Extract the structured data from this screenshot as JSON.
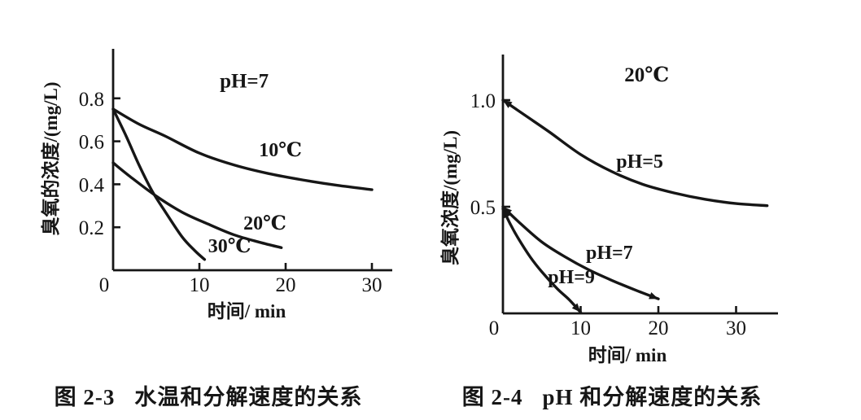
{
  "page": {
    "background": "#ffffff",
    "ink_color": "#161616"
  },
  "figures": [
    {
      "caption_number": "图 2-3",
      "caption_text": "水温和分解速度的关系"
    },
    {
      "caption_number": "图 2-4",
      "caption_text": "pH 和分解速度的关系"
    }
  ],
  "chart_data": [
    {
      "type": "line",
      "caption": "图 2-3 水温和分解速度的关系",
      "xlabel": "时间/ min",
      "ylabel": "臭氧的浓度/(mg/L)",
      "xlim": [
        0,
        32
      ],
      "ylim": [
        0,
        1.03
      ],
      "xticks": [
        0,
        10,
        20,
        30
      ],
      "yticks": [
        0.2,
        0.4,
        0.6,
        0.8
      ],
      "grid": false,
      "legend_position": "inline-labels",
      "annotations": [
        {
          "text": "pH=7",
          "x": 15.2,
          "y": 0.85,
          "role": "condition"
        }
      ],
      "series": [
        {
          "name": "10℃",
          "points": [
            [
              0,
              0.75
            ],
            [
              3,
              0.68
            ],
            [
              6,
              0.625
            ],
            [
              10,
              0.545
            ],
            [
              14,
              0.49
            ],
            [
              18,
              0.45
            ],
            [
              22,
              0.42
            ],
            [
              26,
              0.395
            ],
            [
              30,
              0.375
            ]
          ],
          "label": {
            "text": "10℃",
            "x": 19.4,
            "y": 0.53
          },
          "arrow_start": false,
          "arrow_end": false
        },
        {
          "name": "20℃",
          "points": [
            [
              0,
              0.5
            ],
            [
              2,
              0.435
            ],
            [
              5,
              0.345
            ],
            [
              8,
              0.27
            ],
            [
              11,
              0.215
            ],
            [
              14,
              0.165
            ],
            [
              17,
              0.13
            ],
            [
              19.5,
              0.105
            ]
          ],
          "label": {
            "text": "20℃",
            "x": 17.6,
            "y": 0.19
          },
          "arrow_start": false,
          "arrow_end": false
        },
        {
          "name": "30℃",
          "points": [
            [
              0,
              0.75
            ],
            [
              1.5,
              0.625
            ],
            [
              3,
              0.49
            ],
            [
              4.5,
              0.37
            ],
            [
              6,
              0.275
            ],
            [
              8,
              0.155
            ],
            [
              9.5,
              0.09
            ],
            [
              10.6,
              0.05
            ]
          ],
          "label": {
            "text": "30℃",
            "x": 13.5,
            "y": 0.084
          },
          "arrow_start": false,
          "arrow_end": false
        }
      ]
    },
    {
      "type": "line",
      "caption": "图 2-4 pH 和分解速度的关系",
      "xlabel": "时间/ min",
      "ylabel": "臭氧浓度/(mg/L)",
      "xlim": [
        0,
        35
      ],
      "ylim": [
        0,
        1.2
      ],
      "xticks": [
        0,
        10,
        20,
        30
      ],
      "yticks": [
        0.5,
        1.0
      ],
      "grid": false,
      "legend_position": "inline-labels",
      "annotations": [
        {
          "text": "20℃",
          "x": 18.5,
          "y": 1.088,
          "role": "condition"
        }
      ],
      "series": [
        {
          "name": "pH=5",
          "points": [
            [
              0,
              1.0
            ],
            [
              3,
              0.925
            ],
            [
              6,
              0.85
            ],
            [
              10,
              0.745
            ],
            [
              14,
              0.665
            ],
            [
              18,
              0.605
            ],
            [
              22,
              0.565
            ],
            [
              26,
              0.535
            ],
            [
              30,
              0.515
            ],
            [
              34,
              0.505
            ]
          ],
          "label": {
            "text": "pH=5",
            "x": 17.6,
            "y": 0.683
          },
          "arrow_start": true,
          "arrow_end": false
        },
        {
          "name": "pH=7",
          "points": [
            [
              0,
              0.5
            ],
            [
              2,
              0.43
            ],
            [
              5,
              0.335
            ],
            [
              8,
              0.265
            ],
            [
              11,
              0.205
            ],
            [
              14,
              0.155
            ],
            [
              17,
              0.11
            ],
            [
              20,
              0.068
            ]
          ],
          "label": {
            "text": "pH=7",
            "x": 13.7,
            "y": 0.256
          },
          "arrow_start": true,
          "arrow_end": true
        },
        {
          "name": "pH=9",
          "points": [
            [
              0,
              0.49
            ],
            [
              1,
              0.415
            ],
            [
              2,
              0.35
            ],
            [
              3.5,
              0.265
            ],
            [
              5,
              0.195
            ],
            [
              7,
              0.115
            ],
            [
              8.5,
              0.065
            ],
            [
              10,
              0.005
            ]
          ],
          "label": {
            "text": "pH=9",
            "x": 8.8,
            "y": 0.141
          },
          "arrow_start": true,
          "arrow_end": true
        }
      ]
    }
  ]
}
